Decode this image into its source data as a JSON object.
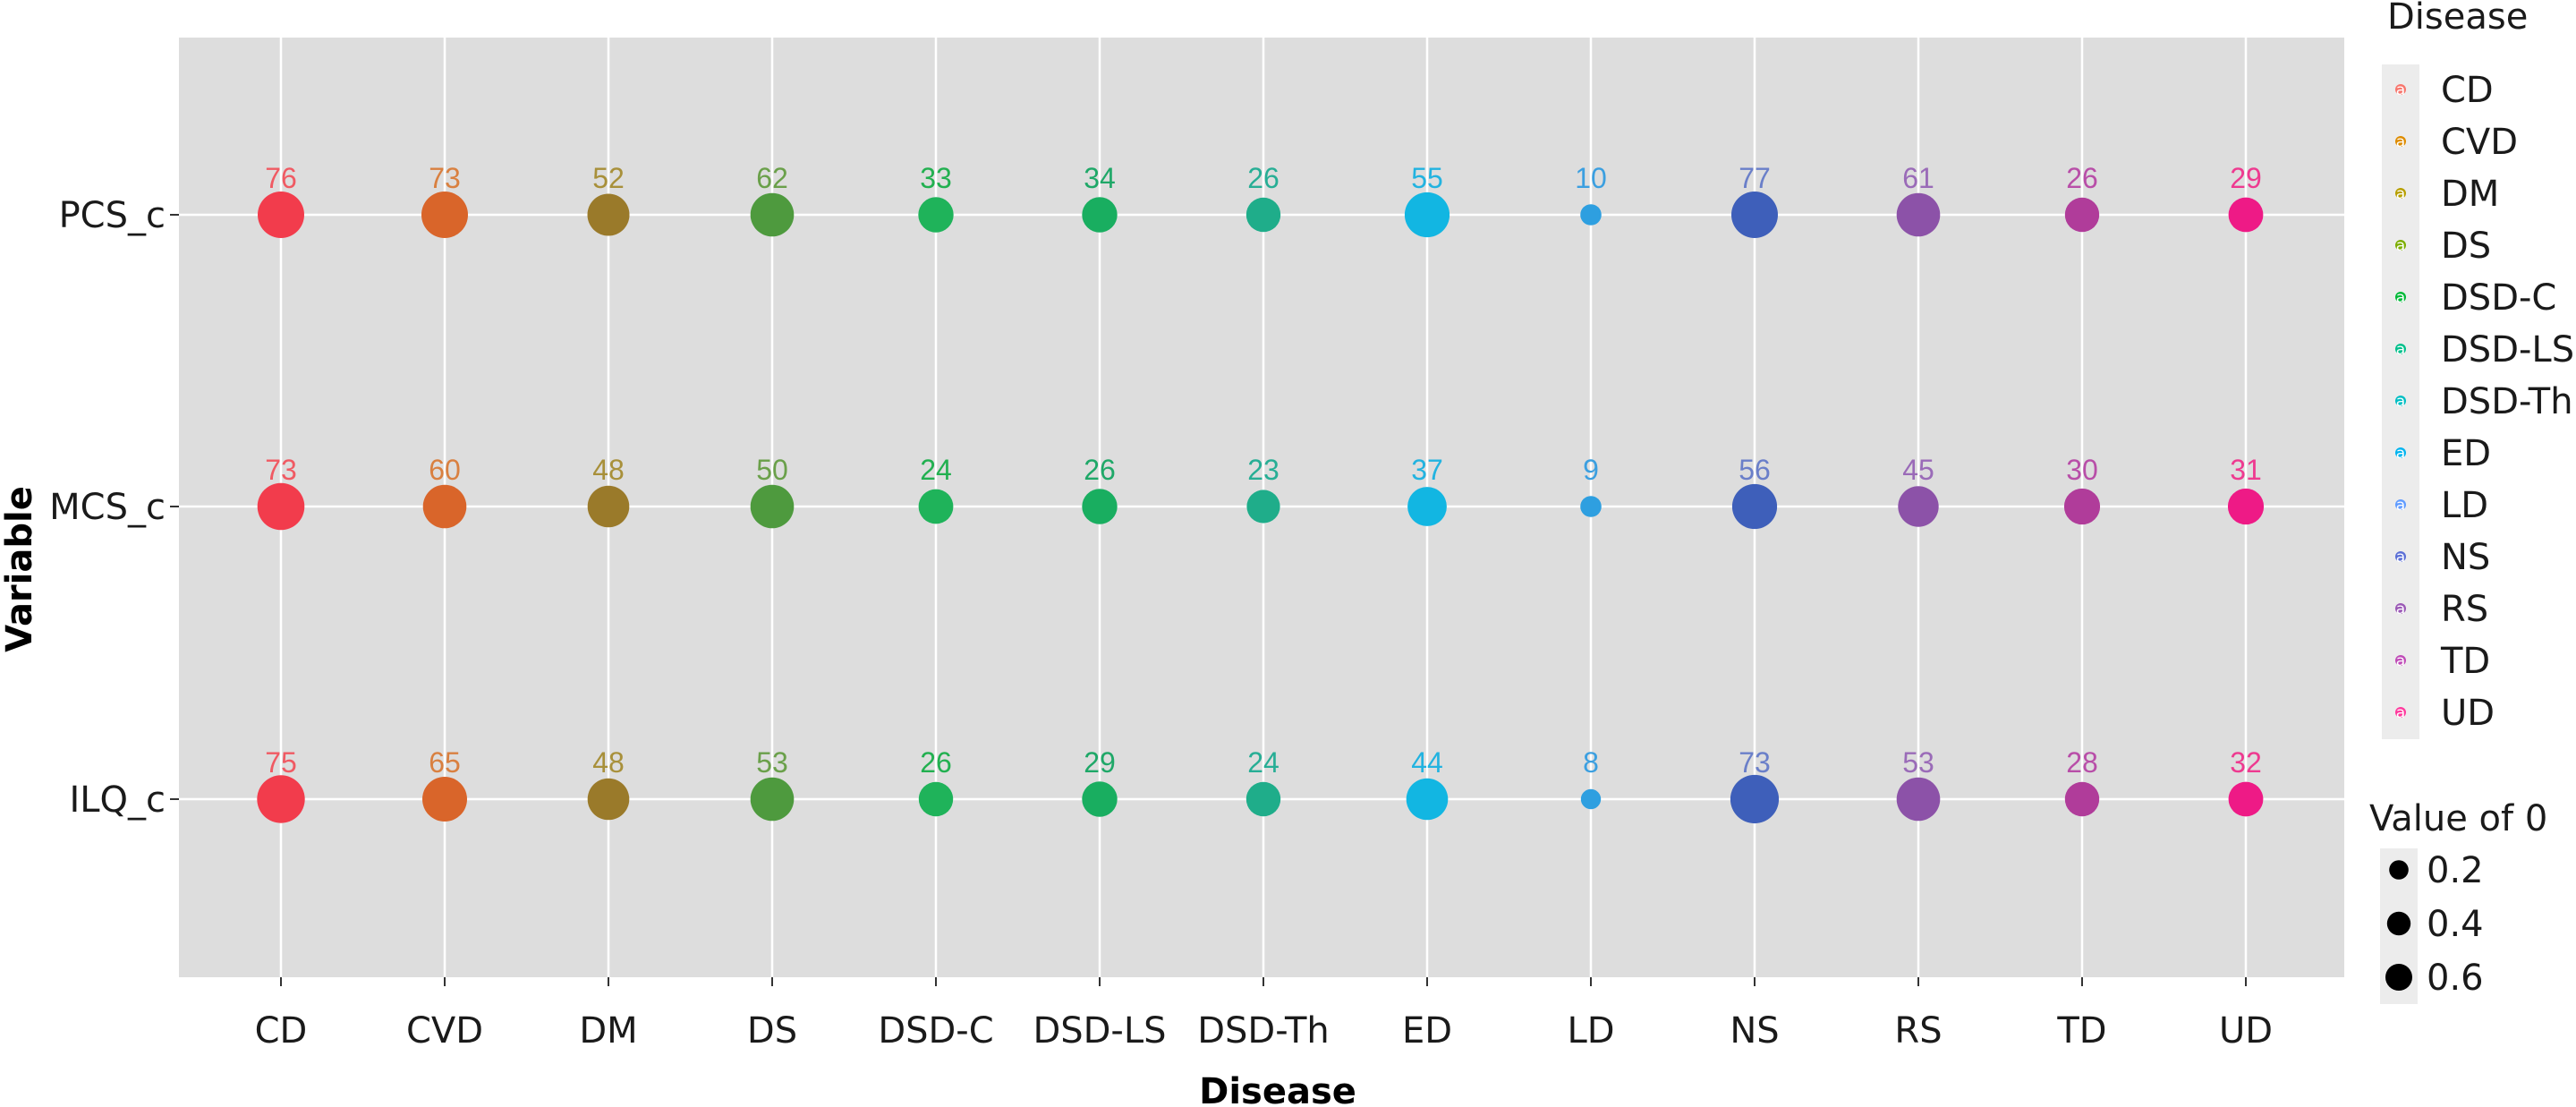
{
  "chart_data": {
    "type": "scatter",
    "xlabel": "Disease",
    "ylabel": "Variable",
    "x_categories": [
      "CD",
      "CVD",
      "DM",
      "DS",
      "DSD-C",
      "DSD-LS",
      "DSD-Th",
      "ED",
      "LD",
      "NS",
      "RS",
      "TD",
      "UD"
    ],
    "y_categories": [
      "PCS_c",
      "MCS_c",
      "ILQ_c"
    ],
    "colors": {
      "CD": "#f8766d",
      "CVD": "#de8c00",
      "DM": "#b79f00",
      "DS": "#7cae00",
      "DSD-C": "#00ba38",
      "DSD-LS": "#00c08b",
      "DSD-Th": "#00bfc4",
      "ED": "#00b4f0",
      "LD": "#619cff",
      "NS": "#5b6fd6",
      "RS": "#9b59b6",
      "TD": "#c04cb8",
      "UD": "#ff3a9e"
    },
    "dot_colors": {
      "CD": "#f23c4c",
      "CVD": "#d9652a",
      "DM": "#9a7a2a",
      "DS": "#4e9a3e",
      "DSD-C": "#1fb35a",
      "DSD-LS": "#19ae60",
      "DSD-Th": "#1fad8a",
      "ED": "#12b6e2",
      "LD": "#2e9fe0",
      "NS": "#3e5fba",
      "RS": "#8c52a8",
      "TD": "#b03c9a",
      "UD": "#ee1a86"
    },
    "label_colors": {
      "CD": "#f05a63",
      "CVD": "#d98040",
      "DM": "#a8903a",
      "DS": "#6aa04a",
      "DSD-C": "#22b050",
      "DSD-LS": "#1fa868",
      "DSD-Th": "#27ae95",
      "ED": "#22b3e0",
      "LD": "#3b9fe0",
      "NS": "#6a7fc9",
      "RS": "#9a6bb8",
      "TD": "#b84ea8",
      "UD": "#ee3a90"
    },
    "series": [
      {
        "name": "PCS_c",
        "labels": [
          76,
          73,
          52,
          62,
          33,
          34,
          26,
          55,
          10,
          77,
          61,
          26,
          29
        ],
        "sizes": [
          0.6,
          0.6,
          0.46,
          0.5,
          0.28,
          0.28,
          0.26,
          0.55,
          0.05,
          0.6,
          0.5,
          0.26,
          0.27
        ]
      },
      {
        "name": "MCS_c",
        "labels": [
          73,
          60,
          48,
          50,
          24,
          26,
          23,
          37,
          9,
          56,
          45,
          30,
          31
        ],
        "sizes": [
          0.62,
          0.5,
          0.45,
          0.5,
          0.27,
          0.28,
          0.24,
          0.38,
          0.05,
          0.55,
          0.42,
          0.3,
          0.3
        ]
      },
      {
        "name": "ILQ_c",
        "labels": [
          75,
          65,
          48,
          53,
          26,
          29,
          24,
          44,
          8,
          73,
          53,
          28,
          32
        ],
        "sizes": [
          0.64,
          0.54,
          0.45,
          0.5,
          0.26,
          0.28,
          0.26,
          0.45,
          0.04,
          0.67,
          0.5,
          0.26,
          0.27
        ]
      }
    ],
    "legend_color": {
      "title": "Disease",
      "entries": [
        "CD",
        "CVD",
        "DM",
        "DS",
        "DSD-C",
        "DSD-LS",
        "DSD-Th",
        "ED",
        "LD",
        "NS",
        "RS",
        "TD",
        "UD"
      ],
      "key_glyph": "a"
    },
    "legend_size": {
      "title": "Value of 0",
      "entries": [
        {
          "label": "0.2",
          "value": 0.2
        },
        {
          "label": "0.4",
          "value": 0.4
        },
        {
          "label": "0.6",
          "value": 0.6
        }
      ]
    },
    "grid": true,
    "legend_position": "right"
  }
}
